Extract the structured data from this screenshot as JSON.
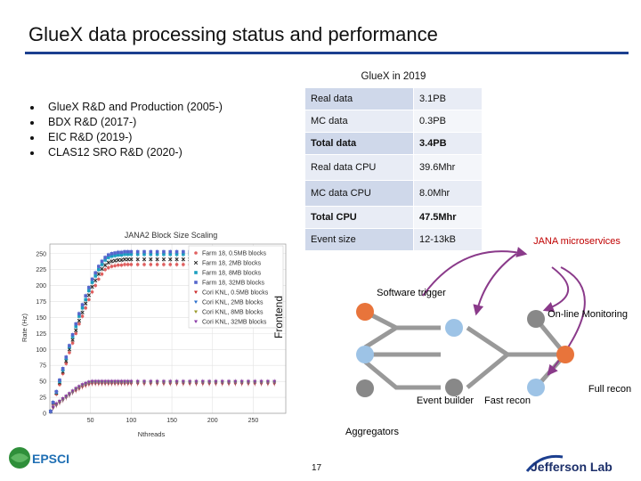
{
  "slide": {
    "title": "GlueX data processing status and performance",
    "page_number": "17"
  },
  "bullets": [
    "GlueX R&D and Production (2005-)",
    "BDX R&D (2017-)",
    "EIC R&D (2019-)",
    "CLAS12 SRO R&D (2020-)"
  ],
  "table": {
    "header": "GlueX in 2019",
    "rows": [
      {
        "label": "Real data",
        "value": "3.1PB"
      },
      {
        "label": "MC data",
        "value": "0.3PB"
      },
      {
        "label": "Total data",
        "value": "3.4PB"
      },
      {
        "label": "Real data CPU",
        "value": "39.6Mhr"
      },
      {
        "label": "MC data CPU",
        "value": "8.0Mhr"
      },
      {
        "label": "Total CPU",
        "value": "47.5Mhr"
      },
      {
        "label": "Event size",
        "value": "12-13kB"
      }
    ]
  },
  "chart_data": {
    "type": "scatter",
    "title": "JANA2 Block Size Scaling",
    "xlabel": "Nthreads",
    "ylabel": "Rate (Hz)",
    "xlim": [
      0,
      290
    ],
    "ylim": [
      0,
      265
    ],
    "xticks": [
      50,
      100,
      150,
      200,
      250
    ],
    "yticks": [
      0,
      25,
      50,
      75,
      100,
      125,
      150,
      175,
      200,
      225,
      250
    ],
    "legend_position": "top-right",
    "series": [
      {
        "name": "Farm 18, 0.5MB blocks",
        "color": "#e06060",
        "marker": "circle",
        "x": [
          1,
          4,
          8,
          12,
          16,
          20,
          24,
          28,
          32,
          36,
          40,
          44,
          48,
          52,
          56,
          60,
          64,
          68,
          72,
          76,
          80,
          84,
          88,
          92,
          96,
          100,
          108,
          116,
          124,
          132,
          140,
          148,
          156,
          164,
          172,
          180,
          188,
          196,
          204,
          212,
          220,
          228,
          236,
          244,
          252,
          260,
          268,
          276,
          284
        ],
        "y": [
          3,
          15,
          30,
          45,
          62,
          78,
          95,
          110,
          125,
          140,
          152,
          165,
          178,
          190,
          200,
          210,
          218,
          225,
          228,
          230,
          231,
          232,
          232,
          233,
          233,
          233,
          233,
          233,
          233,
          233,
          233,
          233,
          233,
          233,
          233,
          233,
          233,
          233,
          233,
          233,
          233,
          233,
          233,
          233,
          233,
          233,
          233,
          233,
          233
        ]
      },
      {
        "name": "Farm 18, 2MB blocks",
        "color": "#222222",
        "marker": "x",
        "x": [
          1,
          4,
          8,
          12,
          16,
          20,
          24,
          28,
          32,
          36,
          40,
          44,
          48,
          52,
          56,
          60,
          64,
          68,
          72,
          76,
          80,
          84,
          88,
          92,
          96,
          100,
          108,
          116,
          124,
          132,
          140,
          148,
          156,
          164,
          172,
          180,
          188,
          196,
          204,
          212,
          220,
          228,
          236,
          244,
          252,
          260,
          268,
          276,
          284
        ],
        "y": [
          3,
          16,
          32,
          48,
          65,
          82,
          100,
          115,
          130,
          145,
          158,
          172,
          185,
          198,
          208,
          218,
          226,
          232,
          236,
          238,
          239,
          240,
          240,
          241,
          241,
          241,
          241,
          241,
          241,
          241,
          241,
          241,
          241,
          241,
          241,
          241,
          241,
          241,
          241,
          241,
          241,
          241,
          241,
          241,
          241,
          241,
          241,
          241,
          241
        ]
      },
      {
        "name": "Farm 18, 8MB blocks",
        "color": "#1a9fbf",
        "marker": "square",
        "x": [
          1,
          4,
          8,
          12,
          16,
          20,
          24,
          28,
          32,
          36,
          40,
          44,
          48,
          52,
          56,
          60,
          64,
          68,
          72,
          76,
          80,
          84,
          88,
          92,
          96,
          100,
          108,
          116,
          124,
          132,
          140,
          148,
          156,
          164,
          172,
          180,
          188,
          196,
          204,
          212,
          220,
          228,
          236,
          244,
          252,
          260,
          268,
          276,
          284
        ],
        "y": [
          3,
          17,
          33,
          50,
          68,
          86,
          104,
          120,
          136,
          152,
          165,
          178,
          192,
          205,
          215,
          225,
          233,
          240,
          244,
          246,
          247,
          248,
          248,
          249,
          249,
          249,
          249,
          249,
          249,
          249,
          249,
          249,
          249,
          249,
          249,
          249,
          249,
          249,
          249,
          249,
          249,
          249,
          249,
          249,
          249,
          249,
          249,
          249,
          249
        ]
      },
      {
        "name": "Farm 18, 32MB blocks",
        "color": "#5566cc",
        "marker": "square",
        "x": [
          1,
          4,
          8,
          12,
          16,
          20,
          24,
          28,
          32,
          36,
          40,
          44,
          48,
          52,
          56,
          60,
          64,
          68,
          72,
          76,
          80,
          84,
          88,
          92,
          96,
          100,
          108,
          116,
          124,
          132,
          140,
          148,
          156,
          164,
          172,
          180,
          188,
          196,
          204,
          212,
          220,
          228,
          236,
          244,
          252,
          260,
          268,
          276,
          284
        ],
        "y": [
          3,
          17,
          34,
          52,
          70,
          88,
          106,
          123,
          140,
          156,
          170,
          184,
          197,
          210,
          220,
          230,
          238,
          244,
          248,
          250,
          251,
          252,
          252,
          253,
          253,
          253,
          253,
          253,
          253,
          253,
          253,
          253,
          253,
          253,
          253,
          253,
          253,
          253,
          253,
          253,
          253,
          253,
          253,
          253,
          253,
          253,
          253,
          253,
          253
        ]
      },
      {
        "name": "Cori KNL, 0.5MB blocks",
        "color": "#cc2a2a",
        "marker": "triangle-down",
        "x": [
          4,
          8,
          12,
          16,
          20,
          24,
          28,
          32,
          36,
          40,
          44,
          48,
          52,
          56,
          60,
          64,
          68,
          72,
          76,
          80,
          84,
          88,
          92,
          96,
          100,
          108,
          116,
          124,
          132,
          140,
          148,
          156,
          164,
          172,
          180,
          188,
          196,
          204,
          212,
          220,
          228,
          236,
          244,
          252,
          260,
          268,
          276
        ],
        "y": [
          8,
          12,
          16,
          20,
          24,
          28,
          32,
          35,
          38,
          41,
          43,
          45,
          46,
          46,
          46,
          46,
          46,
          46,
          46,
          46,
          46,
          46,
          46,
          46,
          46,
          46,
          46,
          46,
          46,
          46,
          46,
          46,
          46,
          46,
          46,
          46,
          46,
          46,
          46,
          46,
          46,
          46,
          46,
          46,
          46,
          46,
          46
        ]
      },
      {
        "name": "Cori KNL, 2MB blocks",
        "color": "#2a6fcc",
        "marker": "triangle-down",
        "x": [
          4,
          8,
          12,
          16,
          20,
          24,
          28,
          32,
          36,
          40,
          44,
          48,
          52,
          56,
          60,
          64,
          68,
          72,
          76,
          80,
          84,
          88,
          92,
          96,
          100,
          108,
          116,
          124,
          132,
          140,
          148,
          156,
          164,
          172,
          180,
          188,
          196,
          204,
          212,
          220,
          228,
          236,
          244,
          252,
          260,
          268,
          276
        ],
        "y": [
          9,
          13,
          17,
          21,
          25,
          29,
          33,
          37,
          40,
          43,
          45,
          47,
          48,
          48,
          48,
          48,
          48,
          48,
          48,
          48,
          48,
          48,
          48,
          48,
          48,
          48,
          48,
          48,
          48,
          48,
          48,
          48,
          48,
          48,
          48,
          48,
          48,
          48,
          48,
          48,
          48,
          48,
          48,
          48,
          48,
          48,
          48
        ]
      },
      {
        "name": "Cori KNL, 8MB blocks",
        "color": "#9a9a2a",
        "marker": "triangle-down",
        "x": [
          4,
          8,
          12,
          16,
          20,
          24,
          28,
          32,
          36,
          40,
          44,
          48,
          52,
          56,
          60,
          64,
          68,
          72,
          76,
          80,
          84,
          88,
          92,
          96,
          100,
          108,
          116,
          124,
          132,
          140,
          148,
          156,
          164,
          172,
          180,
          188,
          196,
          204,
          212,
          220,
          228,
          236,
          244,
          252,
          260,
          268,
          276
        ],
        "y": [
          10,
          14,
          18,
          22,
          26,
          30,
          34,
          38,
          41,
          44,
          46,
          48,
          49,
          49,
          49,
          49,
          49,
          49,
          49,
          49,
          49,
          49,
          49,
          49,
          49,
          49,
          49,
          49,
          49,
          49,
          49,
          49,
          49,
          49,
          49,
          49,
          49,
          49,
          49,
          49,
          49,
          49,
          49,
          49,
          49,
          49,
          49
        ]
      },
      {
        "name": "Cori KNL, 32MB blocks",
        "color": "#8a3aa8",
        "marker": "triangle-down",
        "x": [
          4,
          8,
          12,
          16,
          20,
          24,
          28,
          32,
          36,
          40,
          44,
          48,
          52,
          56,
          60,
          64,
          68,
          72,
          76,
          80,
          84,
          88,
          92,
          96,
          100,
          108,
          116,
          124,
          132,
          140,
          148,
          156,
          164,
          172,
          180,
          188,
          196,
          204,
          212,
          220,
          228,
          236,
          244,
          252,
          260,
          268,
          276
        ],
        "y": [
          10,
          15,
          19,
          23,
          27,
          31,
          35,
          39,
          42,
          45,
          47,
          49,
          50,
          50,
          50,
          50,
          50,
          50,
          50,
          50,
          50,
          50,
          50,
          50,
          50,
          50,
          50,
          50,
          50,
          50,
          50,
          50,
          50,
          50,
          50,
          50,
          50,
          50,
          50,
          50,
          50,
          50,
          50,
          50,
          50,
          50,
          50
        ]
      }
    ]
  },
  "diagram": {
    "header": "JANA microservices",
    "frontend_label": "Frontend",
    "software_trigger_label": "Software trigger",
    "online_monitoring_label": "On-line Monitoring",
    "event_builder_label": "Event builder",
    "fast_recon_label": "Fast recon",
    "full_recon_label": "Full recon",
    "aggregators_label": "Aggregators"
  },
  "logos": {
    "epsci": "EPSCI",
    "jefferson": "Jefferson Lab"
  },
  "colors": {
    "title_rule": "#1c3f8f",
    "table_label_bg": "#cfd8ea",
    "diagram_node_orange": "#e8743b",
    "diagram_node_blue": "#9dc3e6",
    "diagram_node_gray": "#888888",
    "diagram_arrow": "#8a3a8a",
    "diagram_header": "#c00000"
  }
}
